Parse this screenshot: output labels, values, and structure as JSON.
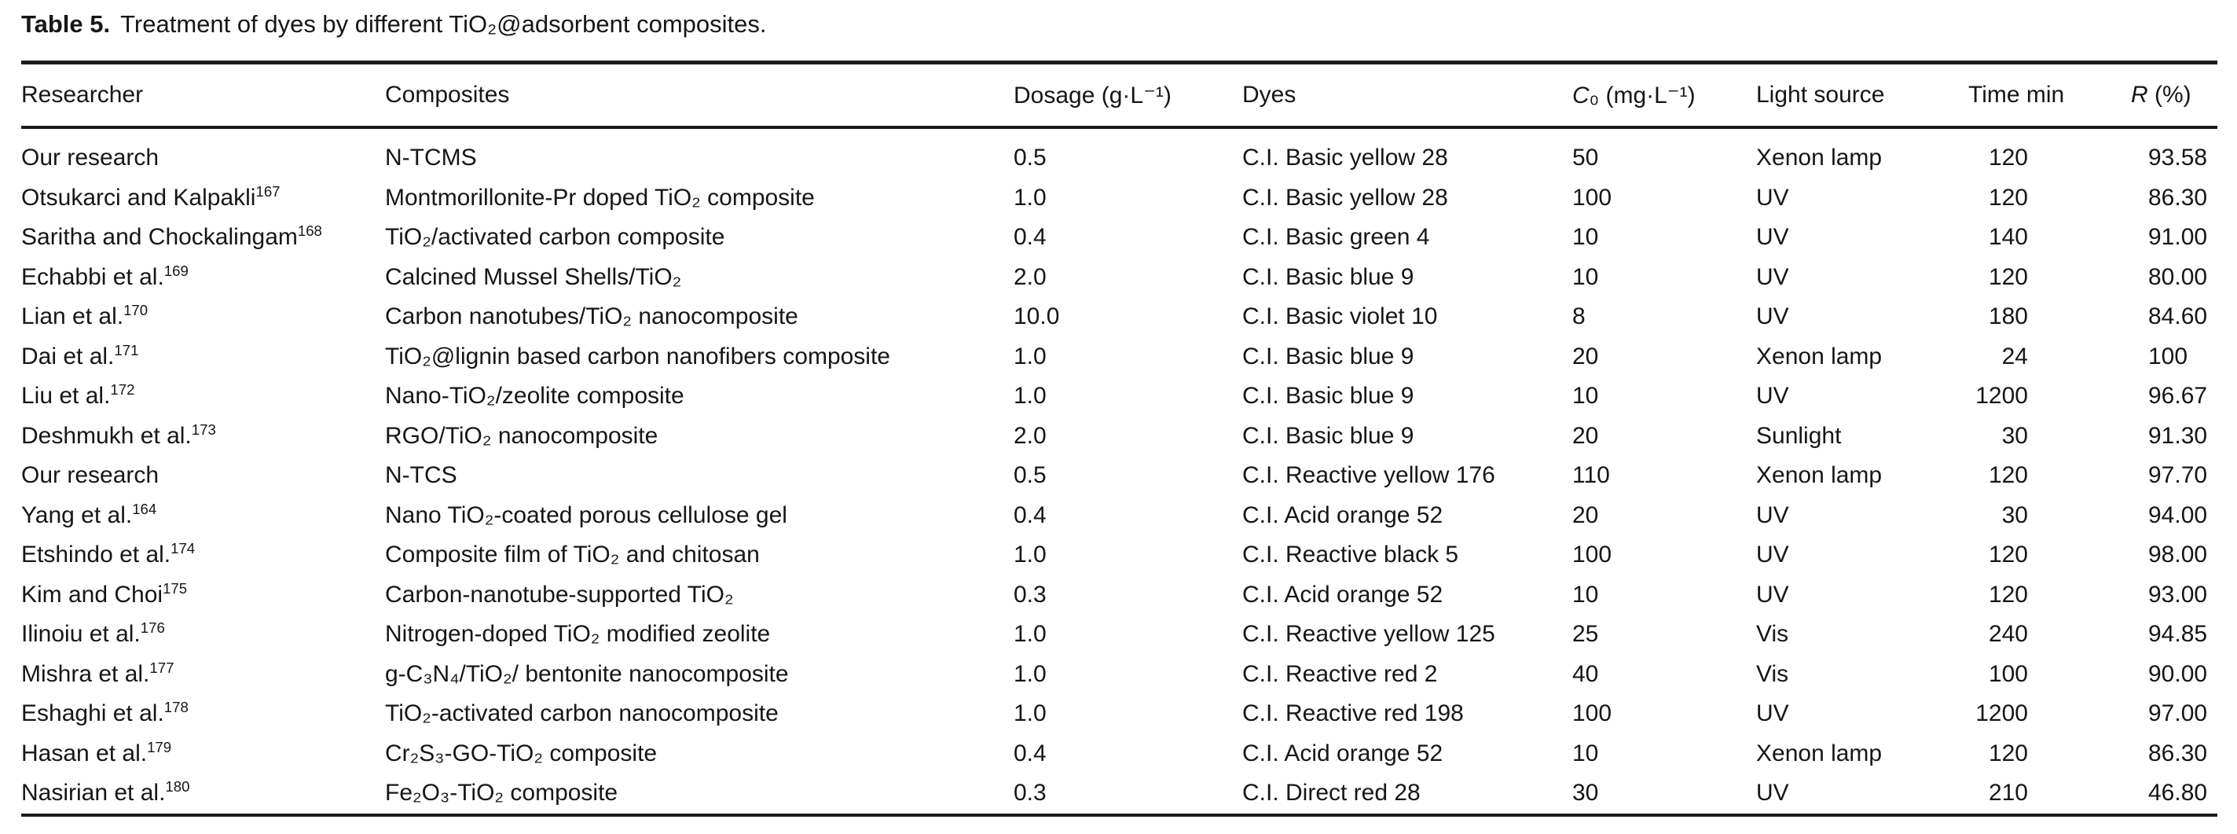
{
  "page": {
    "background_color": "#ffffff",
    "text_color": "#161616",
    "rule_color": "#1b1b1b"
  },
  "table": {
    "caption_label": "Table 5.",
    "caption_text": "Treatment of dyes by different TiO₂@adsorbent composites.",
    "columns": [
      {
        "key": "researcher",
        "label": "Researcher"
      },
      {
        "key": "composite",
        "label": "Composites"
      },
      {
        "key": "dosage",
        "label": "Dosage (g·L⁻¹)"
      },
      {
        "key": "dye",
        "label": "Dyes"
      },
      {
        "key": "c0",
        "label": "C₀ (mg·L⁻¹)"
      },
      {
        "key": "light",
        "label": "Light source"
      },
      {
        "key": "time",
        "label": "Time min"
      },
      {
        "key": "r",
        "label": "R (%)"
      }
    ],
    "rows": [
      {
        "researcher": "Our research",
        "ref": "",
        "composite": "N-TCMS",
        "dosage": "0.5",
        "dye": "C.I. Basic yellow 28",
        "c0": "50",
        "light": "Xenon lamp",
        "time": "120",
        "r": "93.58"
      },
      {
        "researcher": "Otsukarci and Kalpakli",
        "ref": "167",
        "composite": "Montmorillonite-Pr doped TiO₂ composite",
        "dosage": "1.0",
        "dye": "C.I. Basic yellow 28",
        "c0": "100",
        "light": "UV",
        "time": "120",
        "r": "86.30"
      },
      {
        "researcher": "Saritha and Chockalingam",
        "ref": "168",
        "composite": "TiO₂/activated carbon composite",
        "dosage": "0.4",
        "dye": "C.I. Basic green 4",
        "c0": "10",
        "light": "UV",
        "time": "140",
        "r": "91.00"
      },
      {
        "researcher": "Echabbi et al.",
        "ref": "169",
        "composite": "Calcined Mussel Shells/TiO₂",
        "dosage": "2.0",
        "dye": "C.I. Basic blue 9",
        "c0": "10",
        "light": "UV",
        "time": "120",
        "r": "80.00"
      },
      {
        "researcher": "Lian et al.",
        "ref": "170",
        "composite": "Carbon nanotubes/TiO₂ nanocomposite",
        "dosage": "10.0",
        "dye": "C.I. Basic violet 10",
        "c0": "8",
        "light": "UV",
        "time": "180",
        "r": "84.60"
      },
      {
        "researcher": "Dai et al.",
        "ref": "171",
        "composite": "TiO₂@lignin based carbon nanofibers composite",
        "dosage": "1.0",
        "dye": "C.I. Basic blue 9",
        "c0": "20",
        "light": "Xenon lamp",
        "time": "24",
        "r": "100"
      },
      {
        "researcher": "Liu et al.",
        "ref": "172",
        "composite": "Nano-TiO₂/zeolite composite",
        "dosage": "1.0",
        "dye": "C.I. Basic blue 9",
        "c0": "10",
        "light": "UV",
        "time": "1200",
        "r": "96.67"
      },
      {
        "researcher": "Deshmukh et al.",
        "ref": "173",
        "composite": "RGO/TiO₂ nanocomposite",
        "dosage": "2.0",
        "dye": "C.I. Basic blue 9",
        "c0": "20",
        "light": "Sunlight",
        "time": "30",
        "r": "91.30"
      },
      {
        "researcher": "Our research",
        "ref": "",
        "composite": "N-TCS",
        "dosage": "0.5",
        "dye": "C.I. Reactive yellow 176",
        "c0": "110",
        "light": "Xenon lamp",
        "time": "120",
        "r": "97.70"
      },
      {
        "researcher": "Yang et al.",
        "ref": "164",
        "composite": "Nano TiO₂-coated porous cellulose gel",
        "dosage": "0.4",
        "dye": "C.I. Acid orange 52",
        "c0": "20",
        "light": "UV",
        "time": "30",
        "r": "94.00"
      },
      {
        "researcher": "Etshindo et al.",
        "ref": "174",
        "composite": "Composite film of TiO₂ and chitosan",
        "dosage": "1.0",
        "dye": "C.I. Reactive black 5",
        "c0": "100",
        "light": "UV",
        "time": "120",
        "r": "98.00"
      },
      {
        "researcher": "Kim and Choi",
        "ref": "175",
        "composite": "Carbon-nanotube-supported TiO₂",
        "dosage": "0.3",
        "dye": "C.I. Acid orange 52",
        "c0": "10",
        "light": "UV",
        "time": "120",
        "r": "93.00"
      },
      {
        "researcher": "Ilinoiu et al.",
        "ref": "176",
        "composite": "Nitrogen-doped TiO₂ modified zeolite",
        "dosage": "1.0",
        "dye": "C.I. Reactive yellow 125",
        "c0": "25",
        "light": "Vis",
        "time": "240",
        "r": "94.85"
      },
      {
        "researcher": "Mishra et al.",
        "ref": "177",
        "composite": "g-C₃N₄/TiO₂/ bentonite nanocomposite",
        "dosage": "1.0",
        "dye": "C.I. Reactive red 2",
        "c0": "40",
        "light": "Vis",
        "time": "100",
        "r": "90.00"
      },
      {
        "researcher": "Eshaghi et al.",
        "ref": "178",
        "composite": "TiO₂-activated carbon nanocomposite",
        "dosage": "1.0",
        "dye": "C.I. Reactive red 198",
        "c0": "100",
        "light": "UV",
        "time": "1200",
        "r": "97.00"
      },
      {
        "researcher": "Hasan et al.",
        "ref": "179",
        "composite": "Cr₂S₃-GO-TiO₂ composite",
        "dosage": "0.4",
        "dye": "C.I. Acid orange 52",
        "c0": "10",
        "light": "Xenon lamp",
        "time": "120",
        "r": "86.30"
      },
      {
        "researcher": "Nasirian et al.",
        "ref": "180",
        "composite": "Fe₂O₃-TiO₂ composite",
        "dosage": "0.3",
        "dye": "C.I. Direct red 28",
        "c0": "30",
        "light": "UV",
        "time": "210",
        "r": "46.80"
      }
    ]
  }
}
